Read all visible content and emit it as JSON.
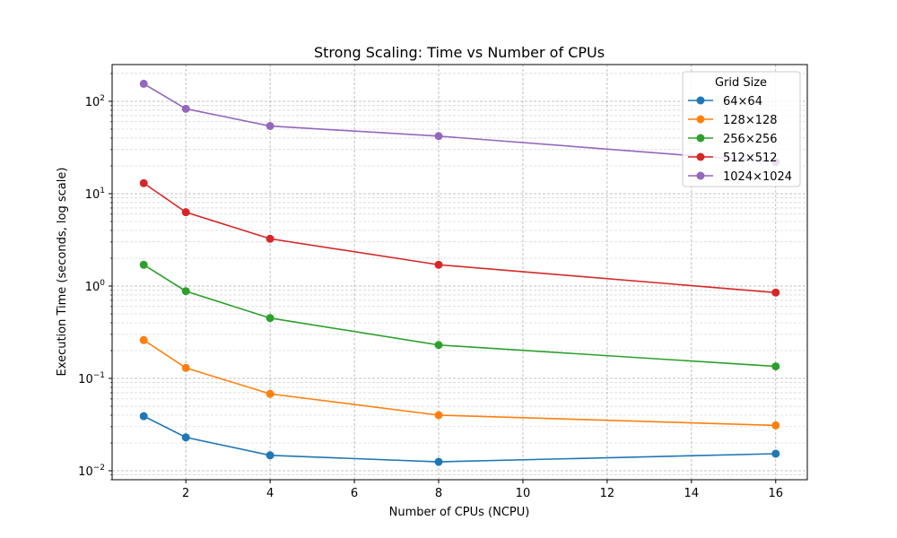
{
  "chart_data": {
    "type": "line",
    "title": "Strong Scaling: Time vs Number of CPUs",
    "xlabel": "Number of CPUs (NCPU)",
    "ylabel": "Execution Time (seconds, log scale)",
    "yscale": "log",
    "xlim": [
      0.25,
      16.75
    ],
    "ylim": [
      0.008,
      250
    ],
    "x_ticks": [
      2,
      4,
      6,
      8,
      10,
      12,
      14,
      16
    ],
    "x_tick_labels": [
      "2",
      "4",
      "6",
      "8",
      "10",
      "12",
      "14",
      "16"
    ],
    "y_ticks": [
      0.01,
      0.1,
      1,
      10,
      100
    ],
    "y_tick_labels": [
      {
        "base": "10",
        "exp": "−2"
      },
      {
        "base": "10",
        "exp": "−1"
      },
      {
        "base": "10",
        "exp": "0"
      },
      {
        "base": "10",
        "exp": "1"
      },
      {
        "base": "10",
        "exp": "2"
      }
    ],
    "grid": true,
    "legend_title": "Grid Size",
    "legend_position": "top-right",
    "x": [
      1,
      2,
      4,
      8,
      16
    ],
    "series": [
      {
        "name": "64×64",
        "color": "#1f77b4",
        "values": [
          0.039,
          0.023,
          0.0147,
          0.0125,
          0.0153
        ]
      },
      {
        "name": "128×128",
        "color": "#ff7f0e",
        "values": [
          0.26,
          0.13,
          0.068,
          0.04,
          0.031
        ]
      },
      {
        "name": "256×256",
        "color": "#2ca02c",
        "values": [
          1.7,
          0.88,
          0.45,
          0.23,
          0.135
        ]
      },
      {
        "name": "512×512",
        "color": "#d62728",
        "values": [
          13.0,
          6.3,
          3.25,
          1.7,
          0.85
        ]
      },
      {
        "name": "1024×1024",
        "color": "#9467bd",
        "values": [
          155,
          83,
          54,
          42,
          22
        ]
      }
    ]
  }
}
